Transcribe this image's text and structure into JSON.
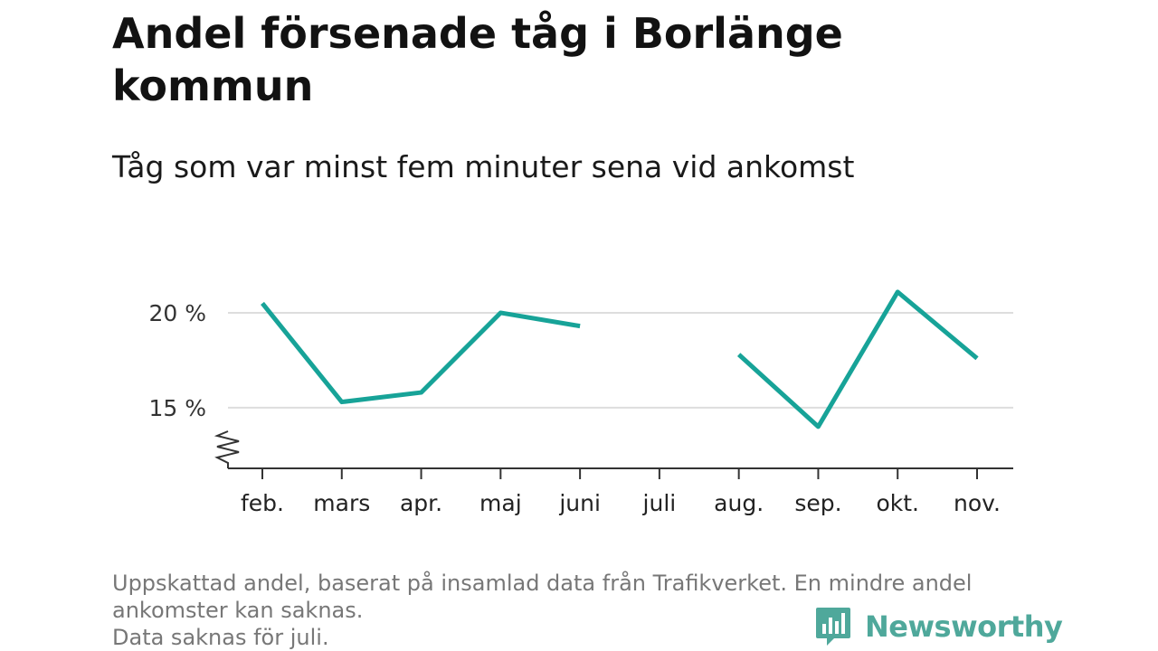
{
  "title": "Andel försenade tåg i Borlänge kommun",
  "subtitle": "Tåg som var minst fem minuter sena vid ankomst",
  "footnote": {
    "line1": "Uppskattad andel, baserat på insamlad data från Trafikverket. En mindre andel",
    "line2": "ankomster kan saknas.",
    "line3": "Data saknas för juli."
  },
  "brand": {
    "name": "Newsworthy",
    "color": "#4fa89b",
    "icon": "newsworthy-logo-icon"
  },
  "chart_data": {
    "type": "line",
    "categories": [
      "feb.",
      "mars",
      "apr.",
      "maj",
      "juni",
      "juli",
      "aug.",
      "sep.",
      "okt.",
      "nov."
    ],
    "series": [
      {
        "values": [
          20.5,
          15.3,
          15.8,
          20.0,
          19.3,
          null,
          17.8,
          14.0,
          21.1,
          17.6
        ],
        "color": "#17a398"
      }
    ],
    "yticks": [
      15,
      20
    ],
    "ytick_labels": [
      "15 %",
      "20 %"
    ],
    "ylim": [
      11.8,
      22
    ],
    "axis_break": true,
    "grid": true,
    "xlabel": "",
    "ylabel": ""
  }
}
